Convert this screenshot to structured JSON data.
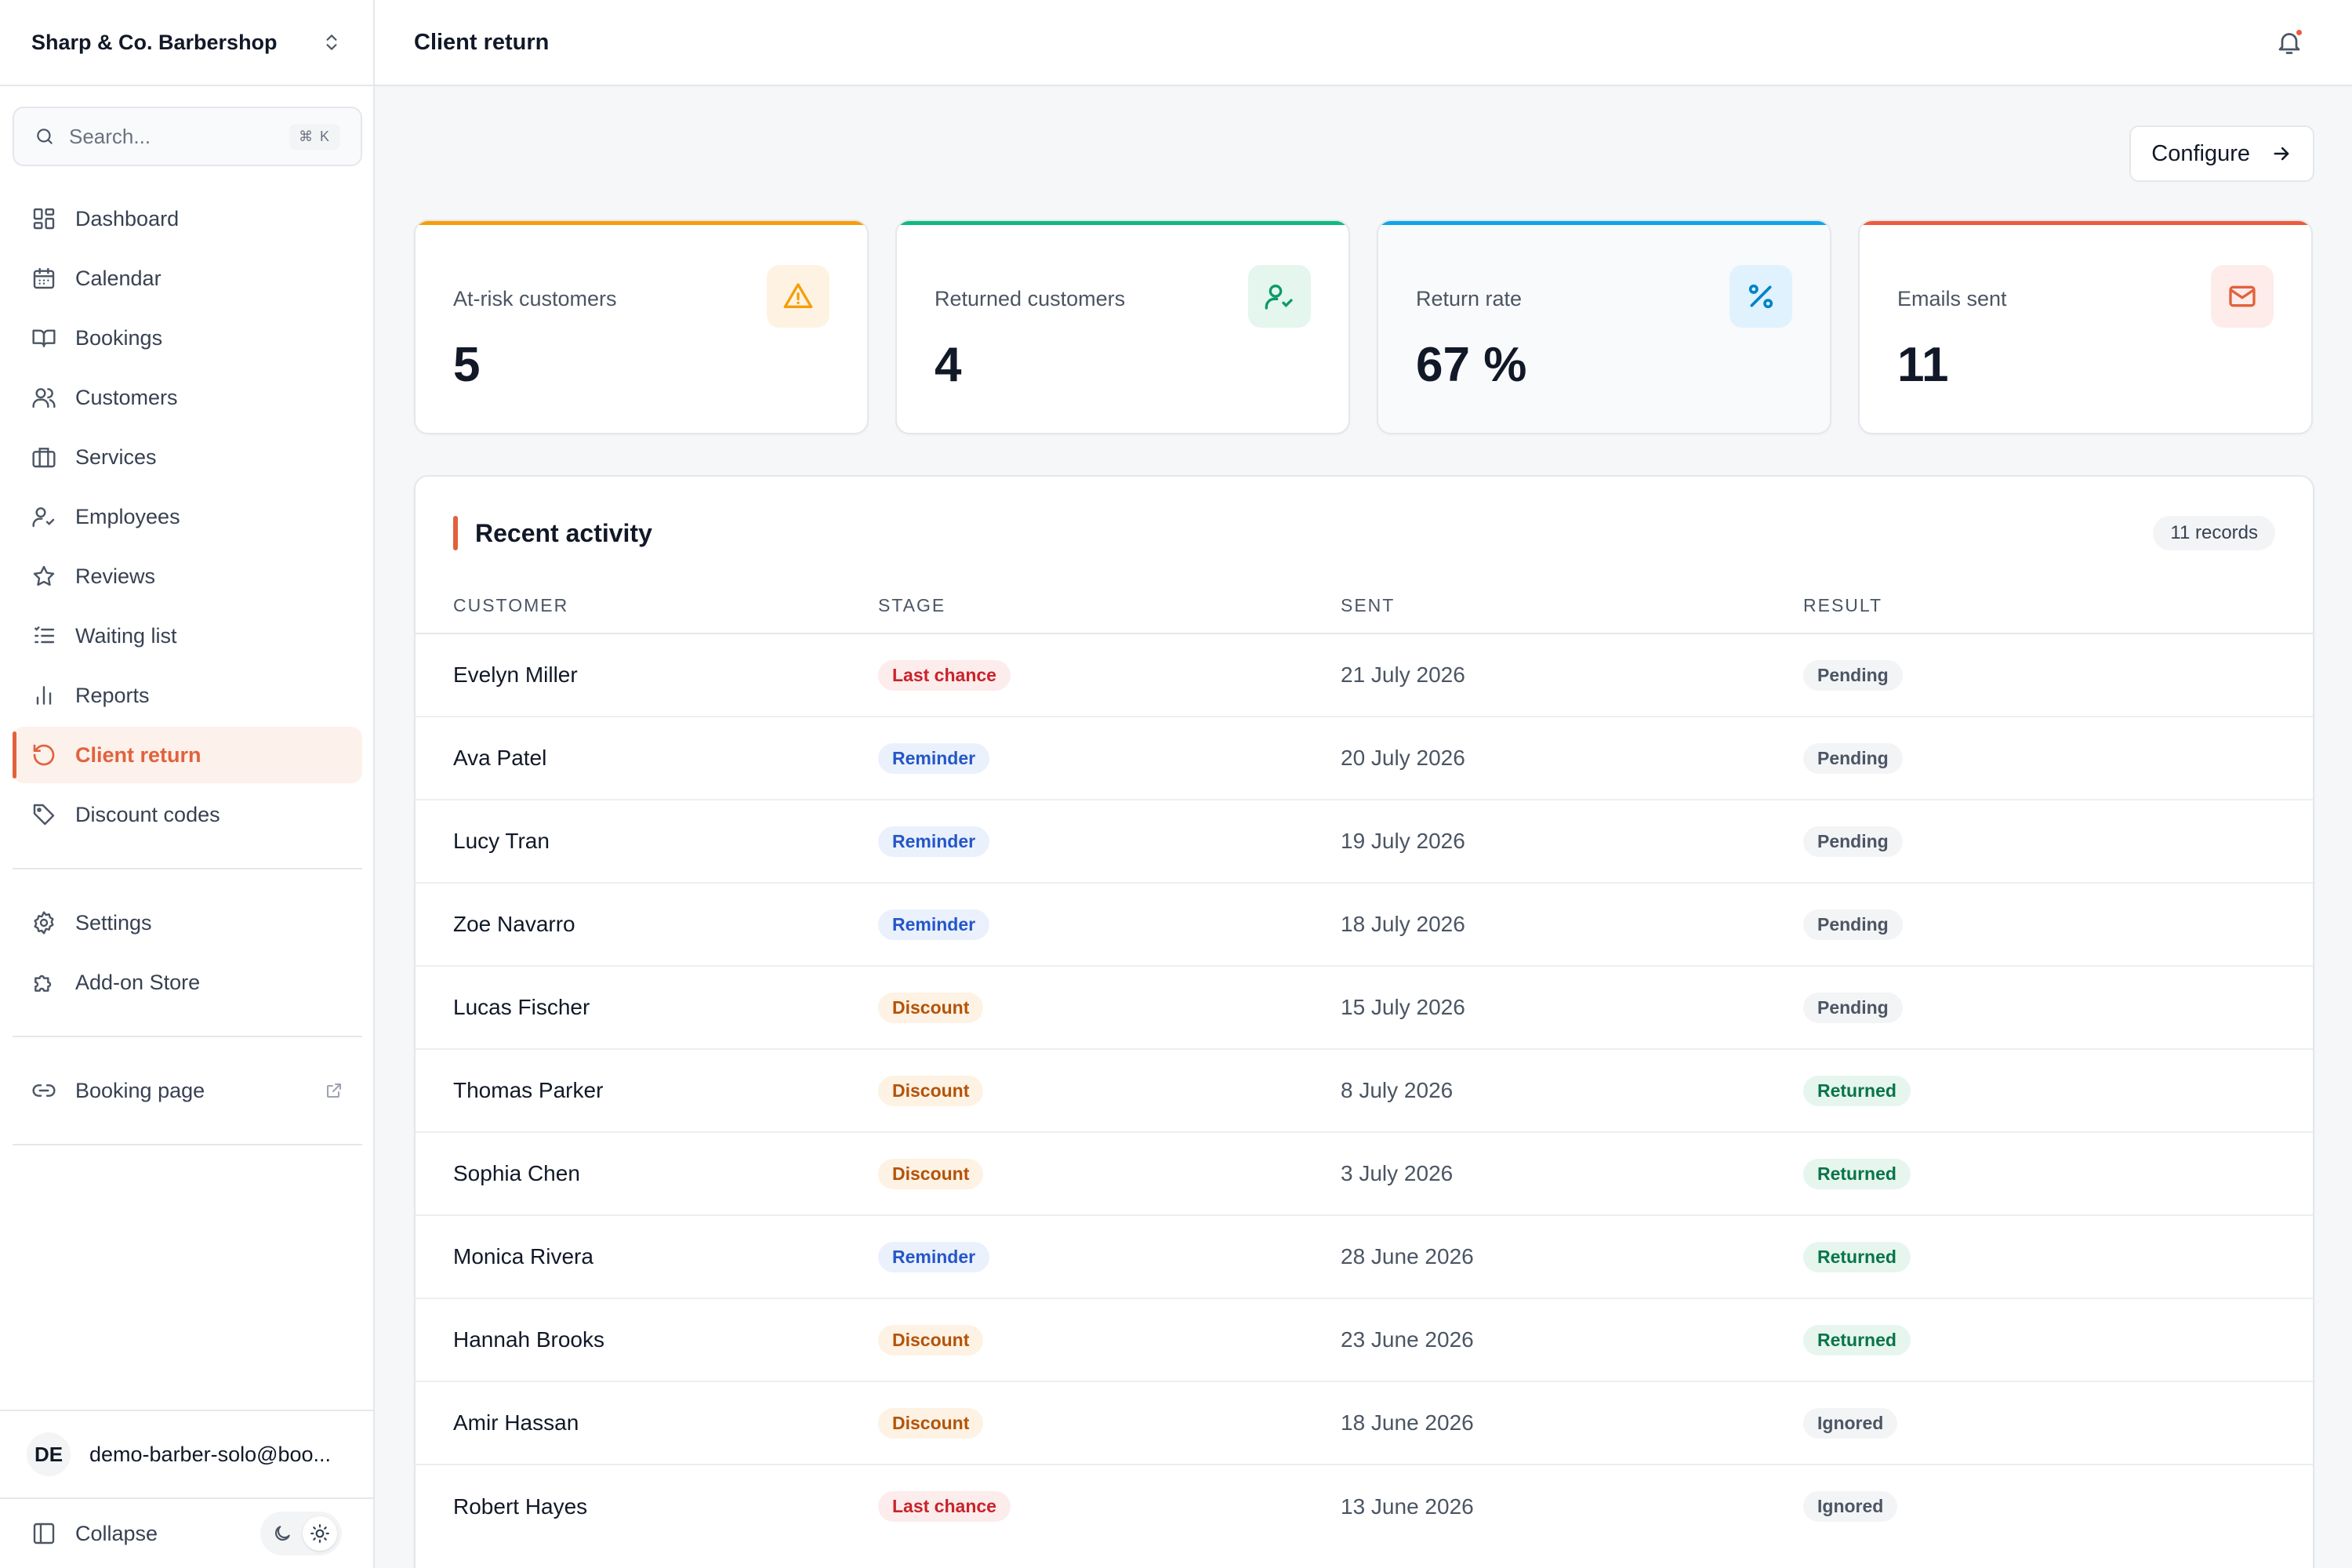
{
  "sidebar": {
    "brand": "Sharp & Co. Barbershop",
    "search": {
      "placeholder": "Search...",
      "shortcut": "⌘ K"
    },
    "nav": [
      {
        "label": "Dashboard",
        "icon": "dashboard-icon"
      },
      {
        "label": "Calendar",
        "icon": "calendar-icon"
      },
      {
        "label": "Bookings",
        "icon": "book-icon"
      },
      {
        "label": "Customers",
        "icon": "users-icon"
      },
      {
        "label": "Services",
        "icon": "briefcase-icon"
      },
      {
        "label": "Employees",
        "icon": "user-check-icon"
      },
      {
        "label": "Reviews",
        "icon": "star-icon"
      },
      {
        "label": "Waiting list",
        "icon": "list-icon"
      },
      {
        "label": "Reports",
        "icon": "bar-chart-icon"
      },
      {
        "label": "Client return",
        "icon": "rotate-ccw-icon",
        "active": true
      },
      {
        "label": "Discount codes",
        "icon": "tag-icon"
      }
    ],
    "secondary": [
      {
        "label": "Settings",
        "icon": "gear-icon"
      },
      {
        "label": "Add-on Store",
        "icon": "puzzle-icon"
      }
    ],
    "booking_page": {
      "label": "Booking page",
      "icon": "link-icon"
    },
    "user": {
      "initials": "DE",
      "email": "demo-barber-solo@boo..."
    },
    "collapse_label": "Collapse"
  },
  "header": {
    "title": "Client return"
  },
  "configure_label": "Configure",
  "stats": [
    {
      "label": "At-risk customers",
      "value": "5",
      "accent": "#f59e0b",
      "icon": "alert-triangle-icon"
    },
    {
      "label": "Returned customers",
      "value": "4",
      "accent": "#10b981",
      "icon": "user-check-icon"
    },
    {
      "label": "Return rate",
      "value": "67 %",
      "accent": "#0ea5e9",
      "icon": "percent-icon"
    },
    {
      "label": "Emails sent",
      "value": "11",
      "accent": "#ef5a3c",
      "icon": "mail-icon"
    }
  ],
  "activity": {
    "title": "Recent activity",
    "records": "11 records",
    "columns": [
      "CUSTOMER",
      "STAGE",
      "SENT",
      "RESULT"
    ],
    "rows": [
      {
        "customer": "Evelyn Miller",
        "stage": "Last chance",
        "sent": "21 July 2026",
        "result": "Pending"
      },
      {
        "customer": "Ava Patel",
        "stage": "Reminder",
        "sent": "20 July 2026",
        "result": "Pending"
      },
      {
        "customer": "Lucy Tran",
        "stage": "Reminder",
        "sent": "19 July 2026",
        "result": "Pending"
      },
      {
        "customer": "Zoe Navarro",
        "stage": "Reminder",
        "sent": "18 July 2026",
        "result": "Pending"
      },
      {
        "customer": "Lucas Fischer",
        "stage": "Discount",
        "sent": "15 July 2026",
        "result": "Pending"
      },
      {
        "customer": "Thomas Parker",
        "stage": "Discount",
        "sent": "8 July 2026",
        "result": "Returned"
      },
      {
        "customer": "Sophia Chen",
        "stage": "Discount",
        "sent": "3 July 2026",
        "result": "Returned"
      },
      {
        "customer": "Monica Rivera",
        "stage": "Reminder",
        "sent": "28 June 2026",
        "result": "Returned"
      },
      {
        "customer": "Hannah Brooks",
        "stage": "Discount",
        "sent": "23 June 2026",
        "result": "Returned"
      },
      {
        "customer": "Amir Hassan",
        "stage": "Discount",
        "sent": "18 June 2026",
        "result": "Ignored"
      },
      {
        "customer": "Robert Hayes",
        "stage": "Last chance",
        "sent": "13 June 2026",
        "result": "Ignored"
      }
    ]
  }
}
